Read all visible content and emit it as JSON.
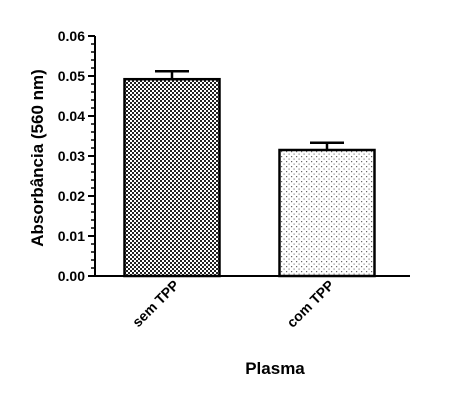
{
  "chart_data": {
    "type": "bar",
    "title": "",
    "xlabel": "Plasma",
    "ylabel": "Absorbância (560 nm)",
    "ylim": [
      0,
      0.06
    ],
    "yticks": [
      "0.00",
      "0.01",
      "0.02",
      "0.03",
      "0.04",
      "0.05",
      "0.06"
    ],
    "categories": [
      "sem TPP",
      "com TPP"
    ],
    "values": [
      0.0492,
      0.0315
    ],
    "errors": [
      0.002,
      0.0018
    ],
    "grid": false,
    "legend": "none",
    "patterns": [
      "dense-checkerboard",
      "sparse-dots"
    ]
  }
}
